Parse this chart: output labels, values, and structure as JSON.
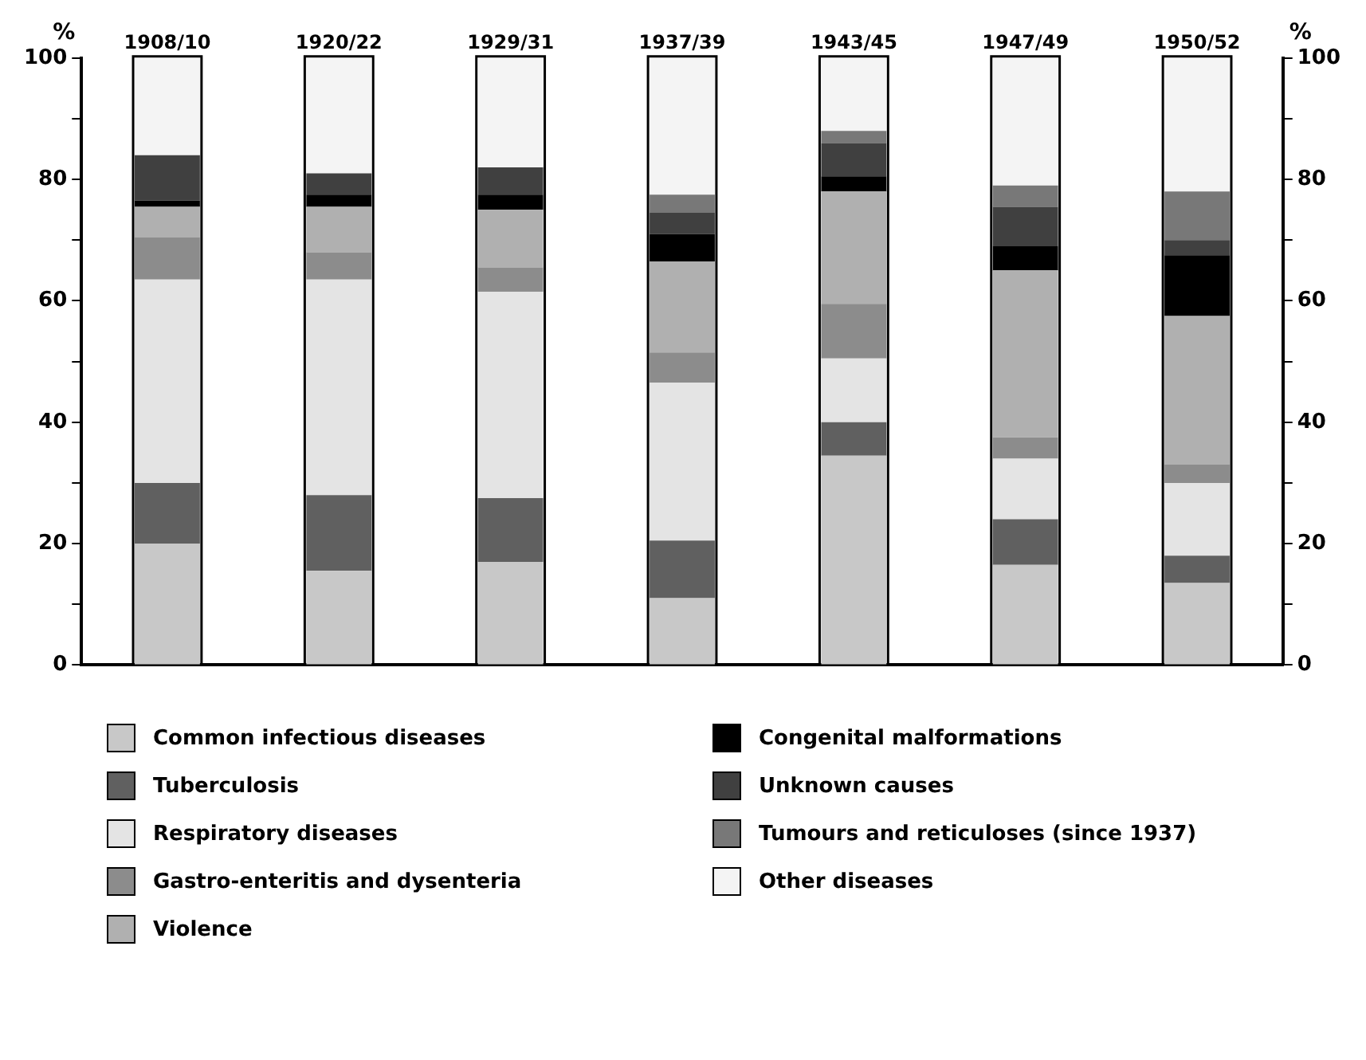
{
  "chart_data": {
    "type": "bar",
    "stacked": true,
    "ylabel": "%",
    "y2label": "%",
    "categories": [
      "1908/10",
      "1920/22",
      "1929/31",
      "1937/39",
      "1943/45",
      "1947/49",
      "1950/52"
    ],
    "series": [
      {
        "name": "Common infectious diseases",
        "color": "#c8c8c8",
        "values": [
          20,
          15.5,
          17,
          11,
          34.5,
          16.5,
          13.5
        ]
      },
      {
        "name": "Tuberculosis",
        "color": "#606060",
        "values": [
          10,
          12.5,
          10.5,
          9.5,
          5.5,
          7.5,
          4.5
        ]
      },
      {
        "name": "Respiratory diseases",
        "color": "#e4e4e4",
        "values": [
          33.5,
          35.5,
          34,
          26,
          10.5,
          10,
          12
        ]
      },
      {
        "name": "Gastro-enteritis and dysenteria",
        "color": "#8c8c8c",
        "values": [
          7,
          4.5,
          4,
          5,
          9,
          3.5,
          3
        ]
      },
      {
        "name": "Violence",
        "color": "#b0b0b0",
        "values": [
          5,
          7.5,
          9.5,
          15,
          18.5,
          27.5,
          24.5
        ]
      },
      {
        "name": "Congenital malformations",
        "color": "#000000",
        "values": [
          1,
          2,
          2.5,
          4.5,
          2.5,
          4,
          10
        ]
      },
      {
        "name": "Unknown causes",
        "color": "#404040",
        "values": [
          7.5,
          3.5,
          4.5,
          3.5,
          5.5,
          6.5,
          2.5
        ]
      },
      {
        "name": "Tumours and reticuloses (since 1937)",
        "color": "#787878",
        "values": [
          null,
          null,
          null,
          3,
          2,
          3.5,
          8
        ]
      },
      {
        "name": "Other diseases",
        "color": "#f4f4f4",
        "values": [
          16,
          19,
          18,
          22.5,
          12,
          21,
          22
        ]
      }
    ],
    "ylim": [
      0,
      100
    ],
    "yticks": [
      0,
      {
        "value": 10,
        "label": null
      },
      20,
      {
        "value": 30,
        "label": null
      },
      40,
      {
        "value": 50,
        "label": null
      },
      60,
      {
        "value": 70,
        "label": null
      },
      80,
      {
        "value": 90,
        "label": null
      },
      100
    ],
    "y2lim": [
      0,
      100
    ],
    "y2ticks": [
      0,
      {
        "value": 10,
        "label": null
      },
      20,
      {
        "value": 30,
        "label": null
      },
      40,
      {
        "value": 50,
        "label": null
      },
      60,
      {
        "value": 70,
        "label": null
      },
      80,
      {
        "value": 90,
        "label": null
      },
      100
    ],
    "grid": false,
    "legend": "bottom"
  }
}
